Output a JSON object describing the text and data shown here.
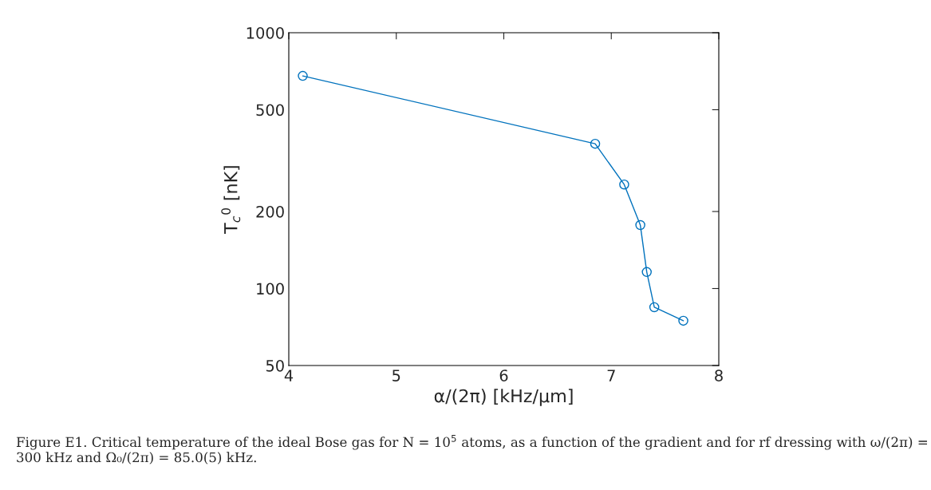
{
  "chart_data": {
    "type": "line",
    "xlabel": "α/(2π) [kHz/μm]",
    "ylabel": "T$_{c}$$^{0}$ [nK]",
    "x": [
      4.13,
      6.85,
      7.12,
      7.27,
      7.33,
      7.4,
      7.67
    ],
    "series": [
      {
        "color": "#0072bd",
        "values": [
          678,
          368,
          255,
          177,
          116,
          84.5,
          74.8
        ]
      }
    ],
    "log": "y",
    "xlim": [
      4,
      8
    ],
    "xticks": [
      4,
      5,
      6,
      7,
      8
    ],
    "ylim": [
      50,
      1000
    ],
    "yticks": [
      50,
      100,
      200,
      500,
      1000
    ],
    "marker": "circle",
    "line_style": "solid",
    "grid": false,
    "legend": false,
    "annotations": [
      "Figure E1. Critical temperature of the ideal Bose gas for N = 10$^{5}$ atoms, as a function of the gradient and for rf dressing with ω/(2π) = 300 kHz and Ω₀/(2π) = 85.0(5) kHz."
    ]
  }
}
